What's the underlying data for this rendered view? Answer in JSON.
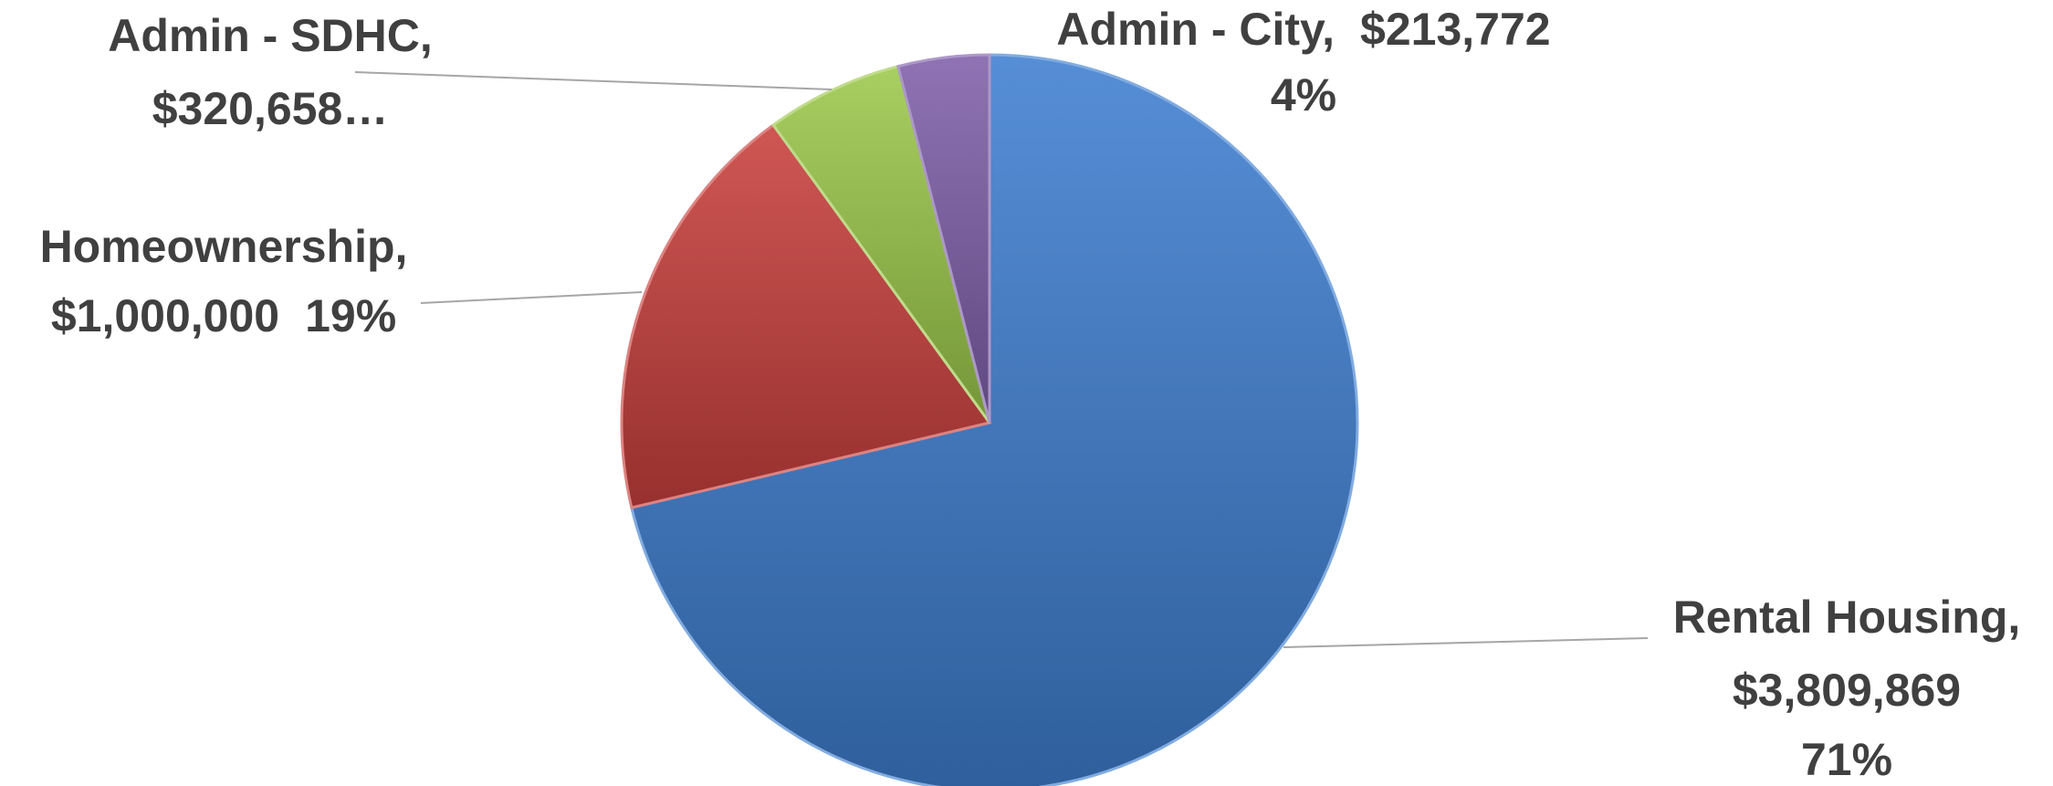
{
  "chart_data": {
    "type": "pie",
    "categories": [
      "Rental Housing,",
      "Homeownership,",
      "Admin - SDHC,",
      "Admin - City,"
    ],
    "values": [
      3809869,
      1000000,
      320658,
      213772
    ],
    "value_labels": [
      "$3,809,869",
      "$1,000,000",
      "$320,658…",
      "$213,772"
    ],
    "percent_labels": [
      "71%",
      "19%",
      "4%"
    ],
    "colors": [
      "#3f7fd0",
      "#c9403d",
      "#9cc84b",
      "#8060aa"
    ]
  }
}
